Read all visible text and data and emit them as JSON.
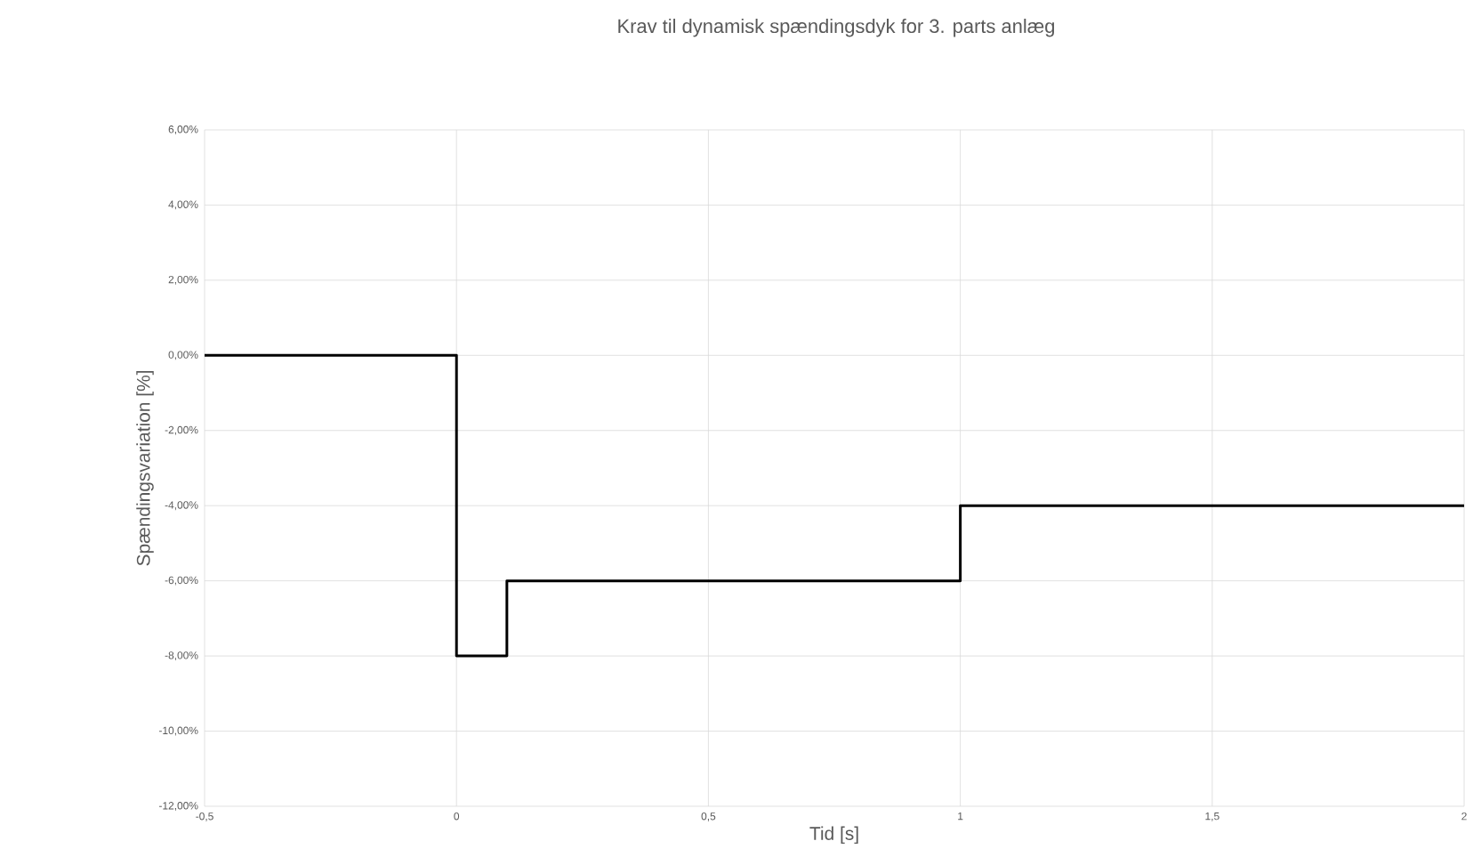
{
  "chart_data": {
    "type": "line",
    "title": "Krav til dynamisk spændingsdyk for 3. parts anlæg",
    "xlabel": "Tid [s]",
    "ylabel": "Spændingsvariation [%]",
    "x": [
      -0.5,
      0,
      0,
      0.1,
      0.1,
      1,
      1,
      2
    ],
    "series": [
      {
        "color": "#000000",
        "values": [
          0,
          0,
          -8,
          -8,
          -6,
          -6,
          -4,
          -4
        ]
      }
    ],
    "xlim": [
      -0.5,
      2
    ],
    "ylim": [
      -12,
      6
    ],
    "xticks": [
      {
        "value": -0.5,
        "label": "-0,5"
      },
      0,
      {
        "value": 0.5,
        "label": "0,5"
      },
      1,
      {
        "value": 1.5,
        "label": "1,5"
      },
      2
    ],
    "yticks": [
      {
        "value": -12,
        "label": "-12,00%"
      },
      {
        "value": -10,
        "label": "-10,00%"
      },
      {
        "value": -8,
        "label": "-8,00%"
      },
      {
        "value": -6,
        "label": "-6,00%"
      },
      {
        "value": -4,
        "label": "-4,00%"
      },
      {
        "value": -2,
        "label": "-2,00%"
      },
      {
        "value": 0,
        "label": "0,00%"
      },
      {
        "value": 2,
        "label": "2,00%"
      },
      {
        "value": 4,
        "label": "4,00%"
      },
      {
        "value": 6,
        "label": "6,00%"
      }
    ],
    "grid": true,
    "marker": "none",
    "line_style": "solid"
  }
}
